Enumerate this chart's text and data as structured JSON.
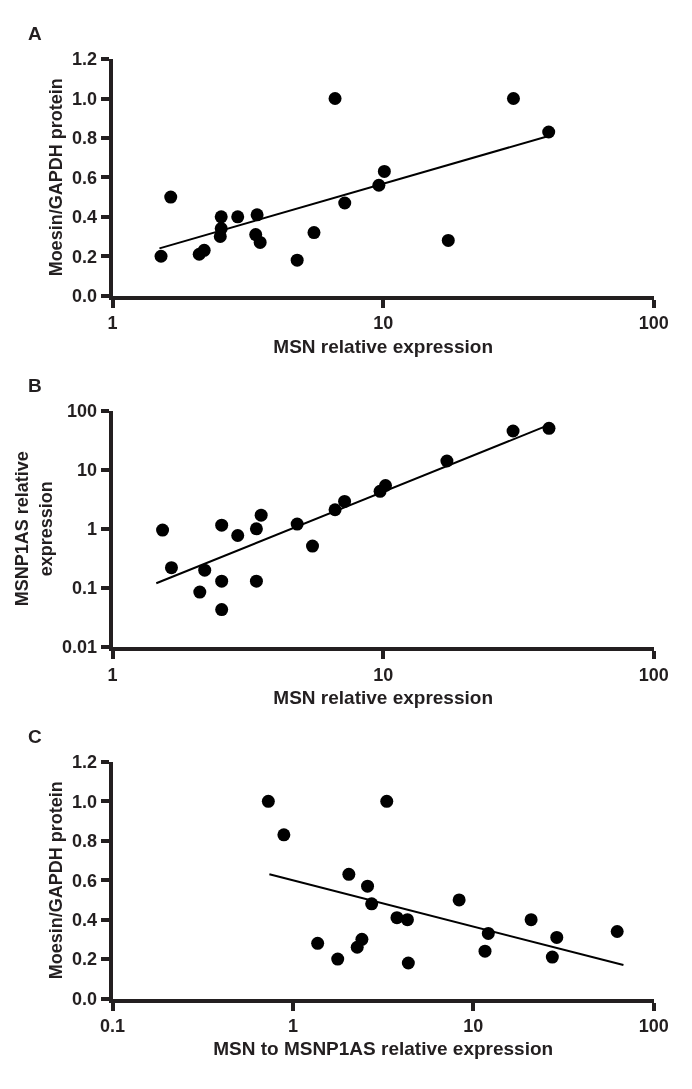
{
  "chart_data": [
    {
      "type": "scatter",
      "title": "A",
      "xlabel": "MSN relative expression",
      "ylabel": "Moesin/GAPDH protein",
      "log": "x",
      "xlim": [
        1,
        100
      ],
      "xticks": [
        1,
        10,
        100
      ],
      "ylim": [
        0,
        1.2
      ],
      "yticks": [
        {
          "value": 0,
          "label": "0.0"
        },
        {
          "value": 0.2,
          "label": "0.2"
        },
        {
          "value": 0.4,
          "label": "0.4"
        },
        {
          "value": 0.6,
          "label": "0.6"
        },
        {
          "value": 0.8,
          "label": "0.8"
        },
        {
          "value": 1.0,
          "label": "1.0"
        },
        {
          "value": 1.2,
          "label": "1.2"
        }
      ],
      "series": [
        {
          "color": "#000000",
          "marker": "circle",
          "x": [
            1.51,
            1.64,
            2.09,
            2.18,
            2.52,
            2.52,
            2.5,
            2.9,
            3.42,
            3.38,
            3.51,
            4.81,
            5.55,
            6.64,
            7.21,
            9.64,
            10.1,
            17.4,
            30.3,
            40.9
          ],
          "values": [
            0.2,
            0.5,
            0.21,
            0.23,
            0.4,
            0.34,
            0.3,
            0.4,
            0.41,
            0.31,
            0.27,
            0.18,
            0.32,
            1.0,
            0.47,
            0.56,
            0.63,
            0.28,
            1.0,
            0.83
          ]
        },
        {
          "type": "line",
          "color": "#000000",
          "x": [
            1.49,
            40.9
          ],
          "values": [
            0.24,
            0.81
          ]
        }
      ]
    },
    {
      "type": "scatter",
      "title": "B",
      "xlabel": "MSN relative expression",
      "ylabel": "MSNP1AS relative\nexpression",
      "log": "xy",
      "xlim": [
        1,
        100
      ],
      "xticks": [
        1,
        10,
        100
      ],
      "ylim": [
        0.01,
        100
      ],
      "yticks": [
        0.01,
        0.1,
        1,
        10,
        100
      ],
      "series": [
        {
          "color": "#000000",
          "marker": "circle",
          "x": [
            1.53,
            1.65,
            2.1,
            2.19,
            2.53,
            2.53,
            2.53,
            2.9,
            3.4,
            3.54,
            3.4,
            4.81,
            5.48,
            6.64,
            7.2,
            9.74,
            10.2,
            17.2,
            30.2,
            41
          ],
          "values": [
            0.95,
            0.22,
            0.085,
            0.2,
            1.15,
            0.13,
            0.043,
            0.77,
            1.0,
            1.7,
            0.13,
            1.2,
            0.51,
            2.1,
            2.9,
            4.3,
            5.4,
            14,
            45,
            50
          ]
        },
        {
          "type": "line",
          "color": "#000000",
          "x": [
            1.45,
            41
          ],
          "values": [
            0.12,
            57
          ]
        }
      ]
    },
    {
      "type": "scatter",
      "title": "C",
      "xlabel": "MSN to MSNP1AS relative expression",
      "ylabel": "Moesin/GAPDH protein",
      "log": "x",
      "xlim": [
        0.1,
        100
      ],
      "xticks": [
        0.1,
        1,
        10,
        100
      ],
      "ylim": [
        0,
        1.2
      ],
      "yticks": [
        {
          "value": 0,
          "label": "0.0"
        },
        {
          "value": 0.2,
          "label": "0.2"
        },
        {
          "value": 0.4,
          "label": "0.4"
        },
        {
          "value": 0.6,
          "label": "0.6"
        },
        {
          "value": 0.8,
          "label": "0.8"
        },
        {
          "value": 1.0,
          "label": "1.0"
        },
        {
          "value": 1.2,
          "label": "1.2"
        }
      ],
      "series": [
        {
          "color": "#000000",
          "marker": "circle",
          "x": [
            0.73,
            0.89,
            1.37,
            1.77,
            2.04,
            2.27,
            2.41,
            2.59,
            2.73,
            3.31,
            3.77,
            4.31,
            4.36,
            8.34,
            11.6,
            12.1,
            20.9,
            27.4,
            29,
            62.7
          ],
          "values": [
            1.0,
            0.83,
            0.28,
            0.2,
            0.63,
            0.26,
            0.3,
            0.57,
            0.48,
            1.0,
            0.41,
            0.4,
            0.18,
            0.5,
            0.24,
            0.33,
            0.4,
            0.21,
            0.31,
            0.34
          ]
        },
        {
          "type": "line",
          "color": "#000000",
          "x": [
            0.74,
            67.9
          ],
          "values": [
            0.63,
            0.17
          ]
        }
      ]
    }
  ]
}
